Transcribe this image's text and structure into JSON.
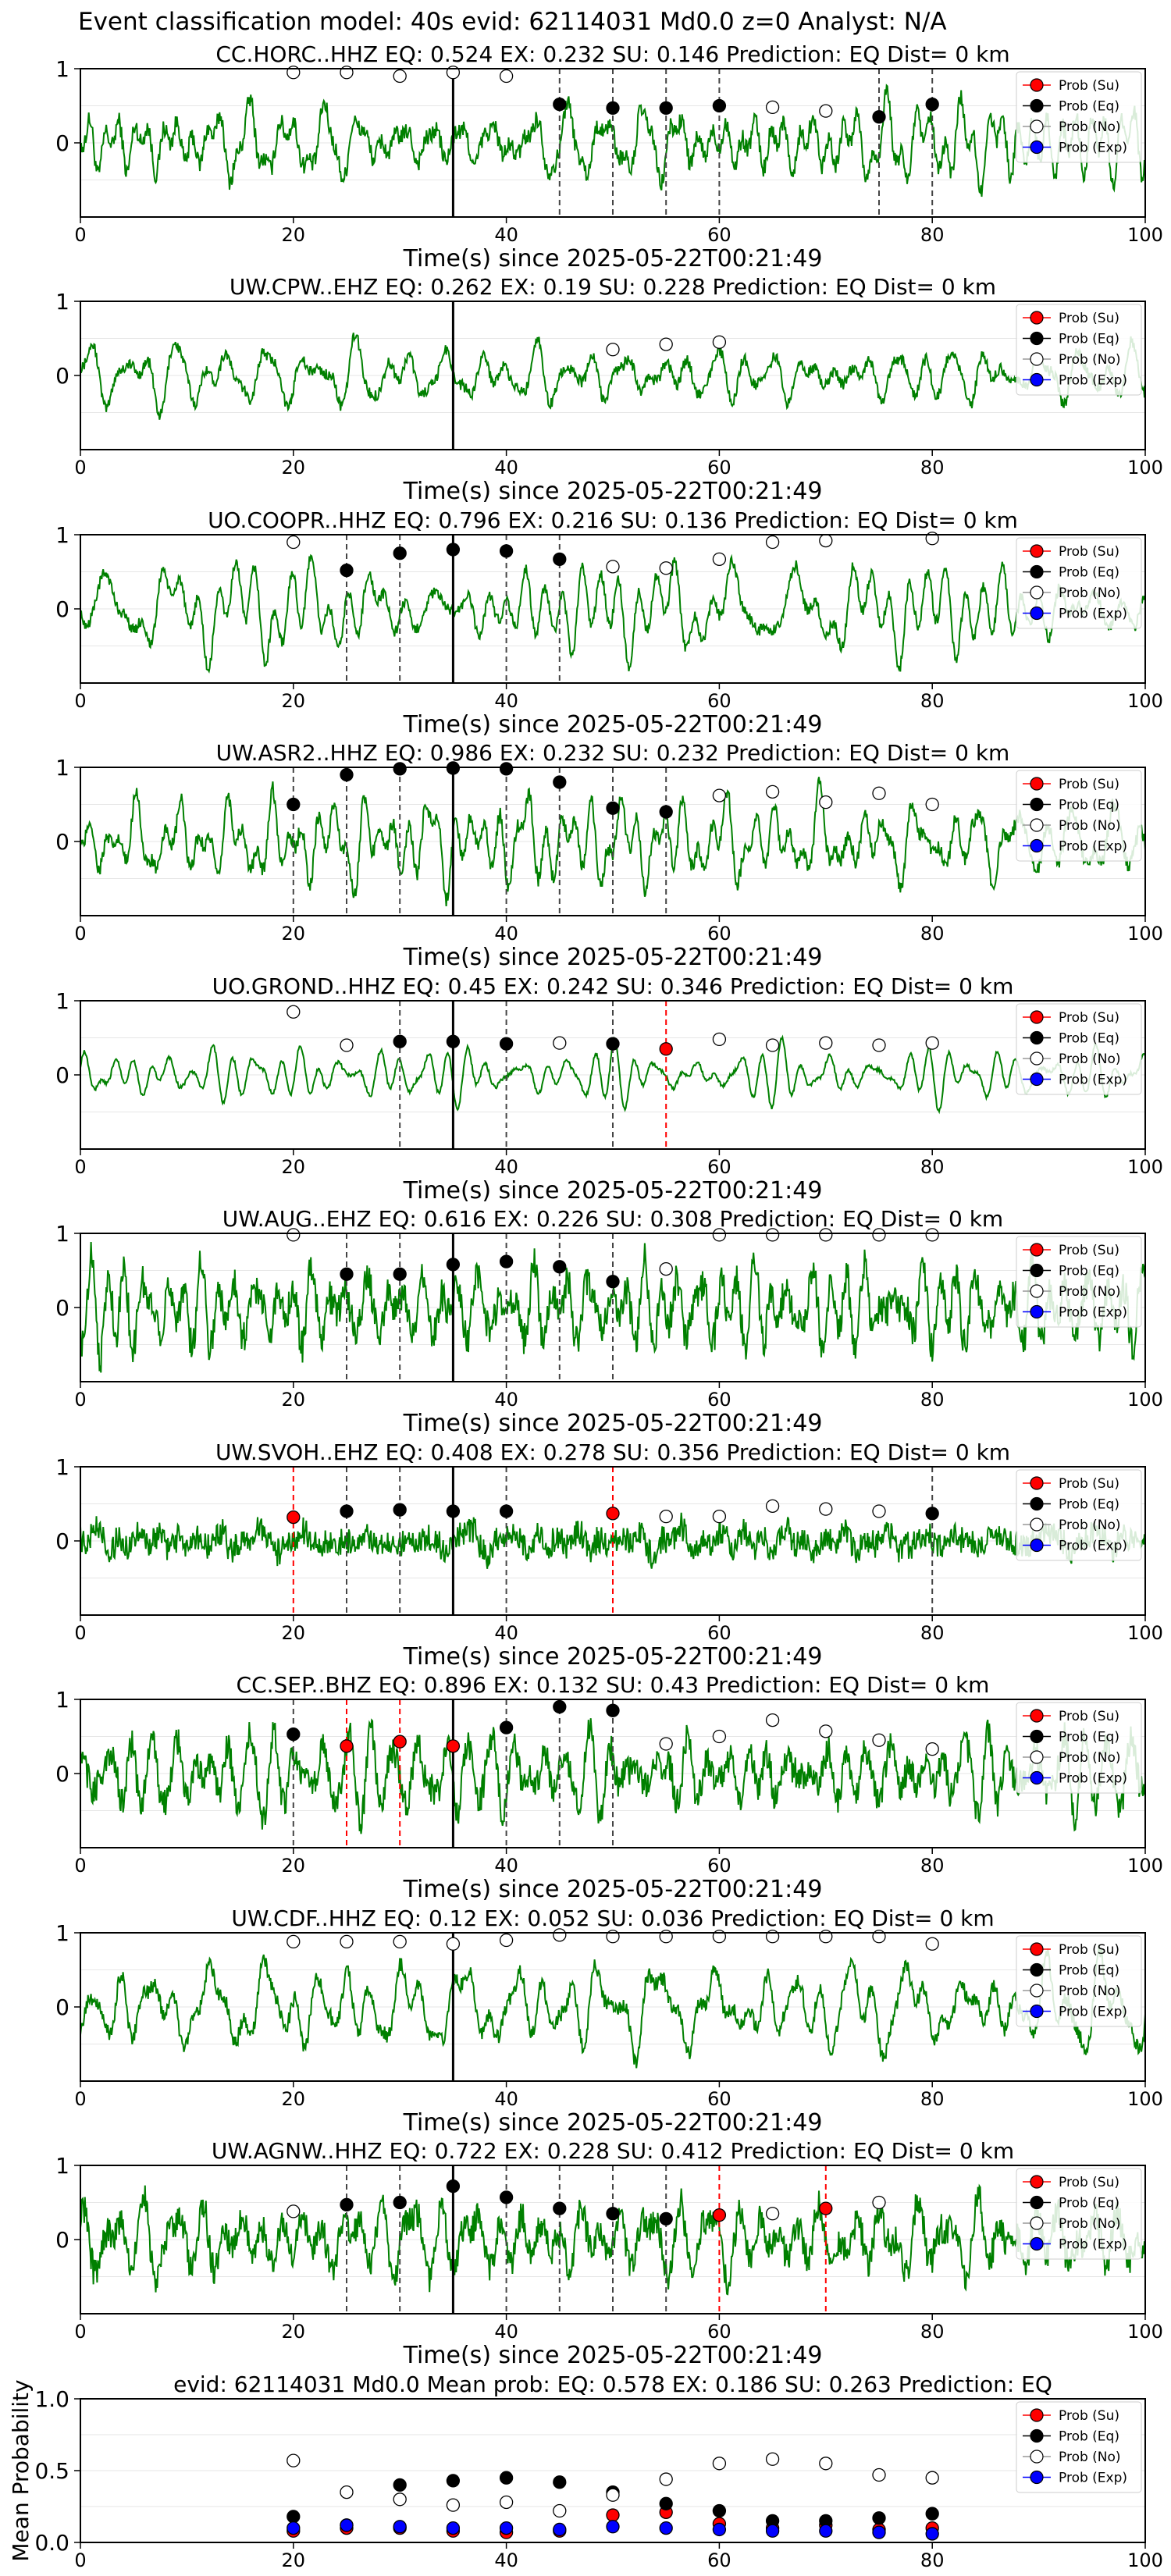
{
  "figure_title": "Event classification model: 40s evid: 62114031 Md0.0 z=0 Analyst: N/A",
  "x_label": "Time(s) since 2025-05-22T00:21:49",
  "legend": [
    "Prob (Su)",
    "Prob (Eq)",
    "Prob (No)",
    "Prob (Exp)"
  ],
  "colors": {
    "waveform": "#008000",
    "su": "#ff0000",
    "eq": "#000000",
    "no": "#ffffff",
    "exp": "#0000ff",
    "eq_line": "#444444",
    "su_line": "#ff0000"
  },
  "chart_data": [
    {
      "type": "line",
      "title": "CC.HORC..HHZ   EQ: 0.524  EX: 0.232  SU: 0.146   Prediction: EQ    Dist= 0 km",
      "xlim": [
        0,
        100
      ],
      "ylim": [
        -1,
        1
      ],
      "xticks": [
        0,
        20,
        40,
        60,
        80,
        100
      ],
      "yticks": [
        1,
        0
      ],
      "pick_time": 35,
      "points": [
        {
          "t": 20,
          "p": 0.95,
          "c": "No"
        },
        {
          "t": 25,
          "p": 0.95,
          "c": "No"
        },
        {
          "t": 30,
          "p": 0.9,
          "c": "No"
        },
        {
          "t": 35,
          "p": 0.95,
          "c": "No"
        },
        {
          "t": 40,
          "p": 0.9,
          "c": "No"
        },
        {
          "t": 45,
          "p": 0.52,
          "c": "Eq"
        },
        {
          "t": 50,
          "p": 0.47,
          "c": "Eq"
        },
        {
          "t": 55,
          "p": 0.47,
          "c": "Eq"
        },
        {
          "t": 60,
          "p": 0.5,
          "c": "Eq"
        },
        {
          "t": 65,
          "p": 0.48,
          "c": "No"
        },
        {
          "t": 70,
          "p": 0.43,
          "c": "No"
        },
        {
          "t": 75,
          "p": 0.35,
          "c": "Eq"
        },
        {
          "t": 80,
          "p": 0.52,
          "c": "Eq"
        }
      ]
    },
    {
      "type": "line",
      "title": "UW.CPW..EHZ   EQ: 0.262  EX: 0.19  SU: 0.228   Prediction: EQ    Dist= 0 km",
      "xlim": [
        0,
        100
      ],
      "ylim": [
        -1,
        1
      ],
      "xticks": [
        0,
        20,
        40,
        60,
        80,
        100
      ],
      "yticks": [
        1,
        0
      ],
      "pick_time": 35,
      "points": [
        {
          "t": 50,
          "p": 0.35,
          "c": "No"
        },
        {
          "t": 55,
          "p": 0.42,
          "c": "No"
        },
        {
          "t": 60,
          "p": 0.45,
          "c": "No"
        }
      ]
    },
    {
      "type": "line",
      "title": "UO.COOPR..HHZ   EQ: 0.796  EX: 0.216  SU: 0.136   Prediction: EQ    Dist= 0 km",
      "xlim": [
        0,
        100
      ],
      "ylim": [
        -1,
        1
      ],
      "xticks": [
        0,
        20,
        40,
        60,
        80,
        100
      ],
      "yticks": [
        1,
        0
      ],
      "pick_time": 35,
      "points": [
        {
          "t": 20,
          "p": 0.9,
          "c": "No"
        },
        {
          "t": 25,
          "p": 0.52,
          "c": "Eq"
        },
        {
          "t": 30,
          "p": 0.75,
          "c": "Eq"
        },
        {
          "t": 35,
          "p": 0.8,
          "c": "Eq"
        },
        {
          "t": 40,
          "p": 0.78,
          "c": "Eq"
        },
        {
          "t": 45,
          "p": 0.67,
          "c": "Eq"
        },
        {
          "t": 50,
          "p": 0.57,
          "c": "No"
        },
        {
          "t": 55,
          "p": 0.55,
          "c": "No"
        },
        {
          "t": 60,
          "p": 0.67,
          "c": "No"
        },
        {
          "t": 65,
          "p": 0.9,
          "c": "No"
        },
        {
          "t": 70,
          "p": 0.92,
          "c": "No"
        },
        {
          "t": 80,
          "p": 0.95,
          "c": "No"
        }
      ]
    },
    {
      "type": "line",
      "title": "UW.ASR2..HHZ   EQ: 0.986  EX: 0.232  SU: 0.232   Prediction: EQ    Dist= 0 km",
      "xlim": [
        0,
        100
      ],
      "ylim": [
        -1,
        1
      ],
      "xticks": [
        0,
        20,
        40,
        60,
        80,
        100
      ],
      "yticks": [
        1,
        0
      ],
      "pick_time": 35,
      "points": [
        {
          "t": 20,
          "p": 0.5,
          "c": "Eq"
        },
        {
          "t": 25,
          "p": 0.9,
          "c": "Eq"
        },
        {
          "t": 30,
          "p": 0.98,
          "c": "Eq"
        },
        {
          "t": 35,
          "p": 0.99,
          "c": "Eq"
        },
        {
          "t": 40,
          "p": 0.98,
          "c": "Eq"
        },
        {
          "t": 45,
          "p": 0.8,
          "c": "Eq"
        },
        {
          "t": 50,
          "p": 0.45,
          "c": "Eq"
        },
        {
          "t": 55,
          "p": 0.4,
          "c": "Eq"
        },
        {
          "t": 60,
          "p": 0.62,
          "c": "No"
        },
        {
          "t": 65,
          "p": 0.67,
          "c": "No"
        },
        {
          "t": 70,
          "p": 0.53,
          "c": "No"
        },
        {
          "t": 75,
          "p": 0.65,
          "c": "No"
        },
        {
          "t": 80,
          "p": 0.5,
          "c": "No"
        }
      ]
    },
    {
      "type": "line",
      "title": "UO.GROND..HHZ   EQ: 0.45  EX: 0.242  SU: 0.346   Prediction: EQ    Dist= 0 km",
      "xlim": [
        0,
        100
      ],
      "ylim": [
        -1,
        1
      ],
      "xticks": [
        0,
        20,
        40,
        60,
        80,
        100
      ],
      "yticks": [
        1,
        0
      ],
      "pick_time": 35,
      "points": [
        {
          "t": 20,
          "p": 0.85,
          "c": "No"
        },
        {
          "t": 25,
          "p": 0.4,
          "c": "No"
        },
        {
          "t": 30,
          "p": 0.45,
          "c": "Eq"
        },
        {
          "t": 35,
          "p": 0.45,
          "c": "Eq"
        },
        {
          "t": 40,
          "p": 0.42,
          "c": "Eq"
        },
        {
          "t": 45,
          "p": 0.43,
          "c": "No"
        },
        {
          "t": 50,
          "p": 0.42,
          "c": "Eq"
        },
        {
          "t": 55,
          "p": 0.35,
          "c": "Su"
        },
        {
          "t": 60,
          "p": 0.48,
          "c": "No"
        },
        {
          "t": 65,
          "p": 0.4,
          "c": "No"
        },
        {
          "t": 70,
          "p": 0.43,
          "c": "No"
        },
        {
          "t": 75,
          "p": 0.4,
          "c": "No"
        },
        {
          "t": 80,
          "p": 0.43,
          "c": "No"
        }
      ]
    },
    {
      "type": "line",
      "title": "UW.AUG..EHZ   EQ: 0.616  EX: 0.226  SU: 0.308   Prediction: EQ    Dist= 0 km",
      "xlim": [
        0,
        100
      ],
      "ylim": [
        -1,
        1
      ],
      "xticks": [
        0,
        20,
        40,
        60,
        80,
        100
      ],
      "yticks": [
        1,
        0
      ],
      "pick_time": 35,
      "points": [
        {
          "t": 20,
          "p": 0.98,
          "c": "No"
        },
        {
          "t": 25,
          "p": 0.45,
          "c": "Eq"
        },
        {
          "t": 30,
          "p": 0.45,
          "c": "Eq"
        },
        {
          "t": 35,
          "p": 0.58,
          "c": "Eq"
        },
        {
          "t": 40,
          "p": 0.62,
          "c": "Eq"
        },
        {
          "t": 45,
          "p": 0.55,
          "c": "Eq"
        },
        {
          "t": 50,
          "p": 0.35,
          "c": "Eq"
        },
        {
          "t": 55,
          "p": 0.52,
          "c": "No"
        },
        {
          "t": 60,
          "p": 0.98,
          "c": "No"
        },
        {
          "t": 65,
          "p": 0.98,
          "c": "No"
        },
        {
          "t": 70,
          "p": 0.98,
          "c": "No"
        },
        {
          "t": 75,
          "p": 0.98,
          "c": "No"
        },
        {
          "t": 80,
          "p": 0.98,
          "c": "No"
        }
      ]
    },
    {
      "type": "line",
      "title": "UW.SVOH..EHZ   EQ: 0.408  EX: 0.278  SU: 0.356   Prediction: EQ    Dist= 0 km",
      "xlim": [
        0,
        100
      ],
      "ylim": [
        -1,
        1
      ],
      "xticks": [
        0,
        20,
        40,
        60,
        80,
        100
      ],
      "yticks": [
        1,
        0
      ],
      "pick_time": 35,
      "points": [
        {
          "t": 20,
          "p": 0.32,
          "c": "Su"
        },
        {
          "t": 25,
          "p": 0.4,
          "c": "Eq"
        },
        {
          "t": 30,
          "p": 0.42,
          "c": "Eq"
        },
        {
          "t": 35,
          "p": 0.4,
          "c": "Eq"
        },
        {
          "t": 40,
          "p": 0.4,
          "c": "Eq"
        },
        {
          "t": 50,
          "p": 0.37,
          "c": "Su"
        },
        {
          "t": 55,
          "p": 0.33,
          "c": "No"
        },
        {
          "t": 60,
          "p": 0.33,
          "c": "No"
        },
        {
          "t": 65,
          "p": 0.47,
          "c": "No"
        },
        {
          "t": 70,
          "p": 0.43,
          "c": "No"
        },
        {
          "t": 75,
          "p": 0.4,
          "c": "No"
        },
        {
          "t": 80,
          "p": 0.37,
          "c": "Eq"
        }
      ]
    },
    {
      "type": "line",
      "title": "CC.SEP..BHZ   EQ: 0.896  EX: 0.132  SU: 0.43   Prediction: EQ    Dist= 0 km",
      "xlim": [
        0,
        100
      ],
      "ylim": [
        -1,
        1
      ],
      "xticks": [
        0,
        20,
        40,
        60,
        80,
        100
      ],
      "yticks": [
        1,
        0
      ],
      "pick_time": 35,
      "points": [
        {
          "t": 20,
          "p": 0.53,
          "c": "Eq"
        },
        {
          "t": 25,
          "p": 0.37,
          "c": "Su"
        },
        {
          "t": 30,
          "p": 0.43,
          "c": "Su"
        },
        {
          "t": 35,
          "p": 0.37,
          "c": "Su"
        },
        {
          "t": 40,
          "p": 0.62,
          "c": "Eq"
        },
        {
          "t": 45,
          "p": 0.9,
          "c": "Eq"
        },
        {
          "t": 50,
          "p": 0.85,
          "c": "Eq"
        },
        {
          "t": 55,
          "p": 0.4,
          "c": "No"
        },
        {
          "t": 60,
          "p": 0.5,
          "c": "No"
        },
        {
          "t": 65,
          "p": 0.72,
          "c": "No"
        },
        {
          "t": 70,
          "p": 0.57,
          "c": "No"
        },
        {
          "t": 75,
          "p": 0.45,
          "c": "No"
        },
        {
          "t": 80,
          "p": 0.33,
          "c": "No"
        }
      ]
    },
    {
      "type": "line",
      "title": "UW.CDF..HHZ   EQ: 0.12  EX: 0.052  SU: 0.036   Prediction: EQ    Dist= 0 km",
      "xlim": [
        0,
        100
      ],
      "ylim": [
        -1,
        1
      ],
      "xticks": [
        0,
        20,
        40,
        60,
        80,
        100
      ],
      "yticks": [
        1,
        0
      ],
      "pick_time": 35,
      "points": [
        {
          "t": 20,
          "p": 0.88,
          "c": "No"
        },
        {
          "t": 25,
          "p": 0.88,
          "c": "No"
        },
        {
          "t": 30,
          "p": 0.88,
          "c": "No"
        },
        {
          "t": 35,
          "p": 0.85,
          "c": "No"
        },
        {
          "t": 40,
          "p": 0.9,
          "c": "No"
        },
        {
          "t": 45,
          "p": 0.97,
          "c": "No"
        },
        {
          "t": 50,
          "p": 0.95,
          "c": "No"
        },
        {
          "t": 55,
          "p": 0.95,
          "c": "No"
        },
        {
          "t": 60,
          "p": 0.95,
          "c": "No"
        },
        {
          "t": 65,
          "p": 0.95,
          "c": "No"
        },
        {
          "t": 70,
          "p": 0.95,
          "c": "No"
        },
        {
          "t": 75,
          "p": 0.95,
          "c": "No"
        },
        {
          "t": 80,
          "p": 0.85,
          "c": "No"
        }
      ]
    },
    {
      "type": "line",
      "title": "UW.AGNW..HHZ   EQ: 0.722  EX: 0.228  SU: 0.412   Prediction: EQ    Dist= 0 km",
      "xlim": [
        0,
        100
      ],
      "ylim": [
        -1,
        1
      ],
      "xticks": [
        0,
        20,
        40,
        60,
        80,
        100
      ],
      "yticks": [
        1,
        0
      ],
      "pick_time": 35,
      "points": [
        {
          "t": 20,
          "p": 0.38,
          "c": "No"
        },
        {
          "t": 25,
          "p": 0.47,
          "c": "Eq"
        },
        {
          "t": 30,
          "p": 0.5,
          "c": "Eq"
        },
        {
          "t": 35,
          "p": 0.72,
          "c": "Eq"
        },
        {
          "t": 40,
          "p": 0.57,
          "c": "Eq"
        },
        {
          "t": 45,
          "p": 0.42,
          "c": "Eq"
        },
        {
          "t": 50,
          "p": 0.35,
          "c": "Eq"
        },
        {
          "t": 55,
          "p": 0.28,
          "c": "Eq"
        },
        {
          "t": 60,
          "p": 0.33,
          "c": "Su"
        },
        {
          "t": 65,
          "p": 0.35,
          "c": "No"
        },
        {
          "t": 70,
          "p": 0.42,
          "c": "Su"
        },
        {
          "t": 75,
          "p": 0.5,
          "c": "No"
        }
      ]
    },
    {
      "type": "scatter",
      "title": "evid: 62114031  Md0.0   Mean prob:   EQ: 0.578  EX: 0.186  SU: 0.263   Prediction: EQ",
      "ylabel": "Mean Probability",
      "xlim": [
        0,
        100
      ],
      "ylim": [
        0,
        1
      ],
      "xticks": [
        0,
        20,
        40,
        60,
        80,
        100
      ],
      "yticks": [
        "0.0",
        "0.5",
        "1.0"
      ],
      "x": [
        20,
        25,
        30,
        35,
        40,
        45,
        50,
        55,
        60,
        65,
        70,
        75,
        80
      ],
      "series": [
        {
          "name": "Prob (Su)",
          "values": [
            0.08,
            0.1,
            0.1,
            0.08,
            0.07,
            0.08,
            0.19,
            0.21,
            0.13,
            0.1,
            0.12,
            0.09,
            0.1
          ]
        },
        {
          "name": "Prob (Eq)",
          "values": [
            0.18,
            0.12,
            0.4,
            0.43,
            0.45,
            0.42,
            0.35,
            0.27,
            0.22,
            0.15,
            0.15,
            0.17,
            0.2
          ]
        },
        {
          "name": "Prob (No)",
          "values": [
            0.57,
            0.35,
            0.3,
            0.26,
            0.28,
            0.22,
            0.33,
            0.44,
            0.55,
            0.58,
            0.55,
            0.47,
            0.45
          ]
        },
        {
          "name": "Prob (Exp)",
          "values": [
            0.1,
            0.12,
            0.11,
            0.1,
            0.1,
            0.09,
            0.11,
            0.1,
            0.09,
            0.08,
            0.08,
            0.07,
            0.06
          ]
        }
      ]
    }
  ]
}
